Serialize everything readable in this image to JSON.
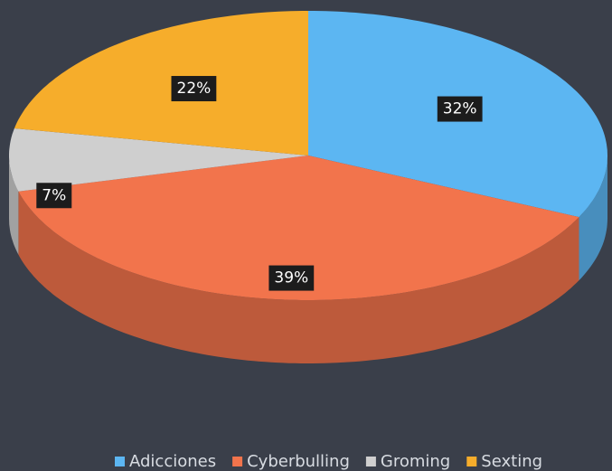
{
  "chart_data": {
    "type": "pie3d",
    "categories": [
      "Adicciones",
      "Cyberbulling",
      "Groming",
      "Sexting"
    ],
    "values": [
      32,
      39,
      7,
      22
    ],
    "value_labels": [
      "32%",
      "39%",
      "7%",
      "22%"
    ],
    "colors": [
      "#5cb6f2",
      "#f2744c",
      "#cfcfcf",
      "#f6ad2b"
    ],
    "legend": "bottom"
  }
}
